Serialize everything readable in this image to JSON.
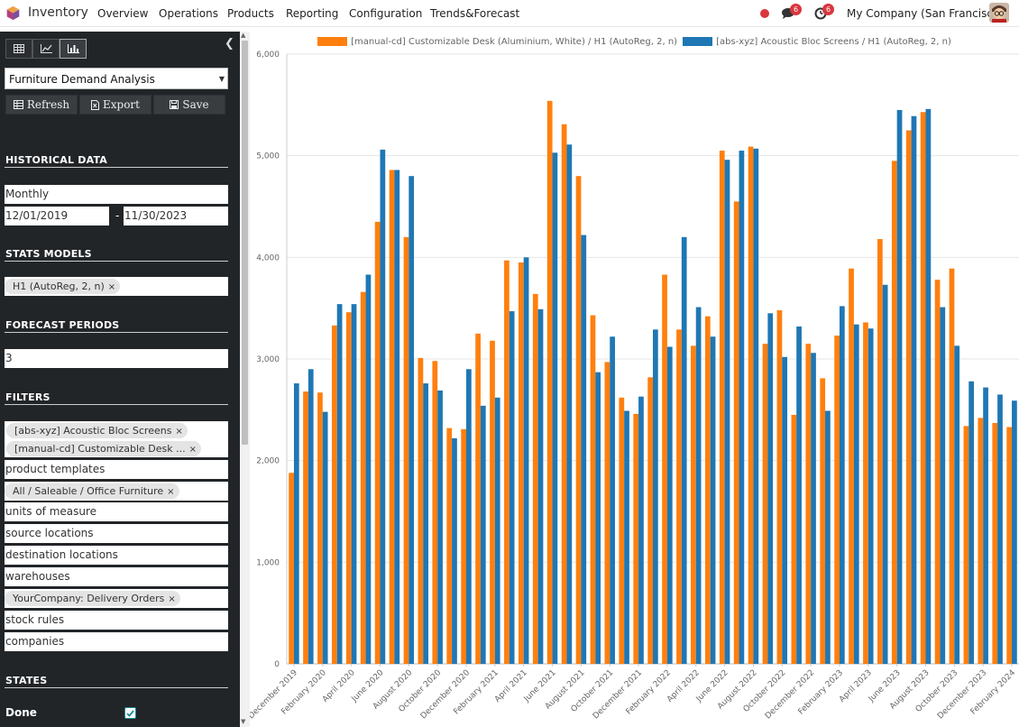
{
  "navbar": {
    "app_name": "Inventory",
    "menu": [
      "Overview",
      "Operations",
      "Products",
      "Reporting",
      "Configuration",
      "Trends&Forecast"
    ],
    "messages_badge": "6",
    "activities_badge": "6",
    "company": "My Company (San Francisco)"
  },
  "panel": {
    "report_name": "Furniture Demand Analysis",
    "actions": {
      "refresh": "Refresh",
      "export": "Export",
      "save": "Save"
    },
    "historical_title": "HISTORICAL DATA",
    "period": "Monthly",
    "date_from": "12/01/2019",
    "date_sep": "-",
    "date_to": "11/30/2023",
    "stats_title": "STATS MODELS",
    "stats_model": "H1 (AutoReg, 2, n)",
    "forecast_title": "FORECAST PERIODS",
    "forecast_periods": "3",
    "filters_title": "FILTERS",
    "filter_products": [
      "[abs-xyz] Acoustic Bloc Screens",
      "[manual-cd] Customizable Desk ..."
    ],
    "product_templates": "product templates",
    "category_tag": "All / Saleable / Office Furniture",
    "units_of_measure": "units of measure",
    "source_locations": "source locations",
    "destination_locations": "destination locations",
    "warehouses": "warehouses",
    "operation_tag": "YourCompany: Delivery Orders",
    "stock_rules": "stock rules",
    "companies": "companies",
    "states_title": "STATES",
    "state_done": "Done",
    "state_done_checked": true
  },
  "colors": {
    "orange": "#ff7f0e",
    "blue": "#1f77b4"
  },
  "chart_data": {
    "type": "bar",
    "ylim": [
      0,
      6000
    ],
    "yticks": [
      "0",
      "1,000",
      "2,000",
      "3,000",
      "4,000",
      "5,000",
      "6,000"
    ],
    "x_tick_labels": [
      "December 2019",
      "February 2020",
      "April 2020",
      "June 2020",
      "August 2020",
      "October 2020",
      "December 2020",
      "February 2021",
      "April 2021",
      "June 2021",
      "August 2021",
      "October 2021",
      "December 2021",
      "February 2022",
      "April 2022",
      "June 2022",
      "August 2022",
      "October 2022",
      "December 2022",
      "February 2023",
      "April 2023",
      "June 2023",
      "August 2023",
      "October 2023",
      "December 2023",
      "February 2024"
    ],
    "series": [
      {
        "name": "[manual-cd] Customizable Desk (Aluminium, White) / H1 (AutoReg, 2, n)",
        "color": "#ff7f0e",
        "values": [
          1880,
          2680,
          2670,
          3330,
          3460,
          3660,
          4350,
          4860,
          4200,
          3010,
          2980,
          2320,
          2310,
          3250,
          3180,
          3970,
          3950,
          3640,
          5540,
          5310,
          4800,
          3430,
          2970,
          2620,
          2460,
          2820,
          3830,
          3290,
          3130,
          3420,
          5050,
          4550,
          5090,
          3150,
          3480,
          2450,
          3150,
          2810,
          3230,
          3890,
          3360,
          4180,
          4950,
          5250,
          5430,
          3780,
          3890,
          2340,
          2420,
          2370,
          2330
        ]
      },
      {
        "name": "[abs-xyz] Acoustic Bloc Screens / H1 (AutoReg, 2, n)",
        "color": "#1f77b4",
        "values": [
          2760,
          2900,
          2480,
          3540,
          3540,
          3830,
          5060,
          4860,
          4800,
          2760,
          2690,
          2220,
          2900,
          2540,
          2620,
          3470,
          4000,
          3490,
          5030,
          5110,
          4220,
          2870,
          3220,
          2490,
          2630,
          3290,
          3120,
          4200,
          3510,
          3220,
          4960,
          5050,
          5070,
          3450,
          3020,
          3320,
          3060,
          2490,
          3520,
          3340,
          3300,
          3730,
          5450,
          5390,
          5460,
          3510,
          3130,
          2780,
          2720,
          2650,
          2590
        ]
      }
    ]
  }
}
